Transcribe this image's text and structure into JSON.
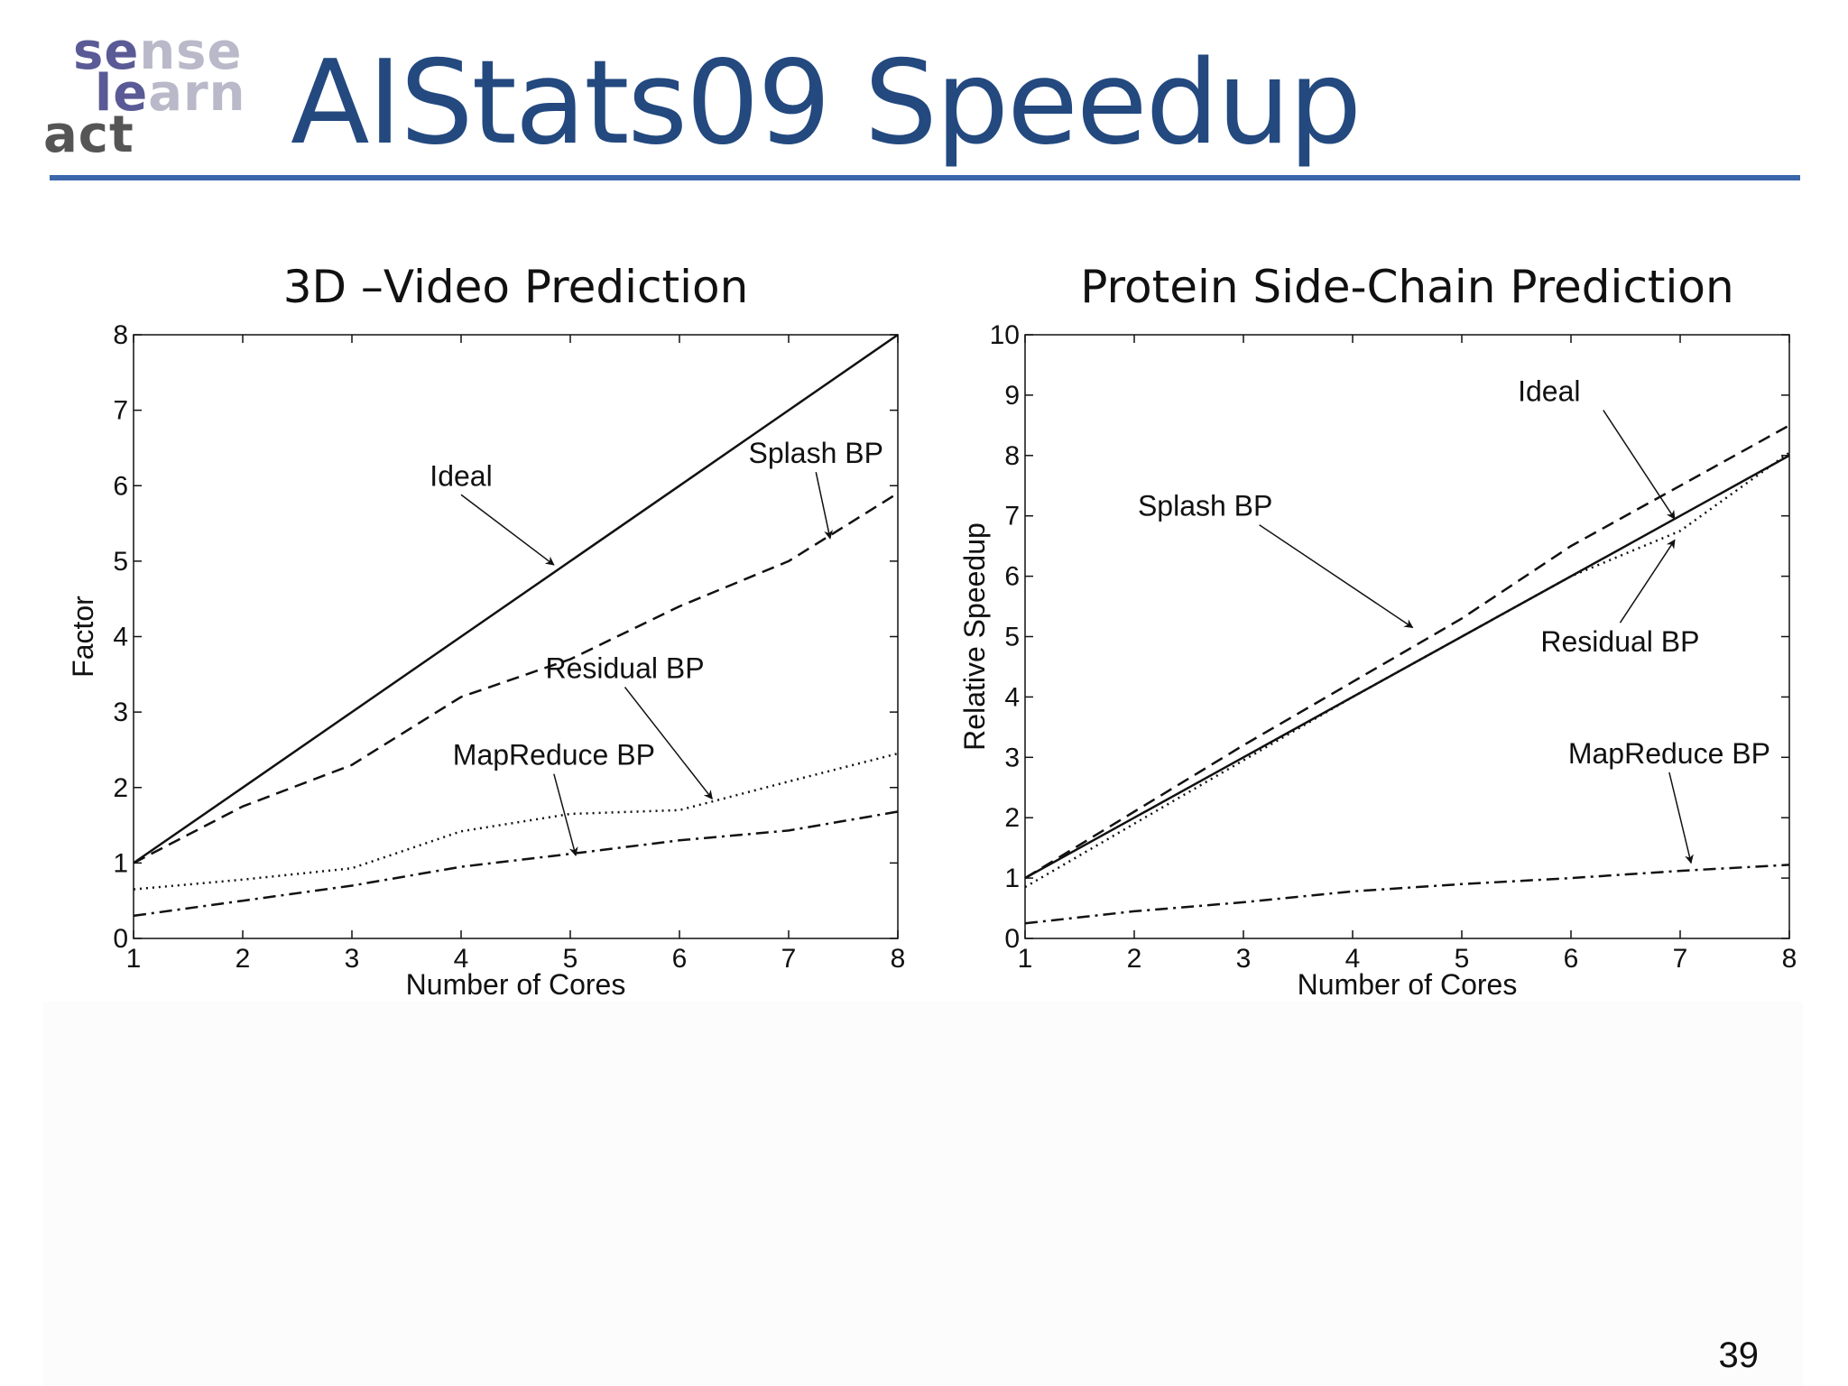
{
  "slide": {
    "title": "AIStats09 Speedup",
    "page_number": "39",
    "logo": {
      "words": [
        {
          "dark": "se",
          "light": "nse"
        },
        {
          "dark": "le",
          "light": "arn"
        },
        {
          "dark": "act",
          "light": ""
        }
      ]
    },
    "colors": {
      "title": "#23497f",
      "rule": "#3b66aa"
    }
  },
  "chart_data": [
    {
      "type": "line",
      "title": "3D –Video Prediction",
      "xlabel": "Number of Cores",
      "ylabel": "Factor",
      "xlim": [
        1,
        8
      ],
      "ylim": [
        0,
        8
      ],
      "xticks": [
        1,
        2,
        3,
        4,
        5,
        6,
        7,
        8
      ],
      "yticks": [
        0,
        1,
        2,
        3,
        4,
        5,
        6,
        7,
        8
      ],
      "grid": false,
      "series": [
        {
          "name": "Ideal",
          "style": "solid",
          "x": [
            1,
            2,
            3,
            4,
            5,
            6,
            7,
            8
          ],
          "y": [
            1,
            2,
            3,
            4,
            5,
            6,
            7,
            8
          ]
        },
        {
          "name": "Splash BP",
          "style": "dashed",
          "x": [
            1,
            2,
            3,
            4,
            5,
            6,
            7,
            8
          ],
          "y": [
            1,
            1.75,
            2.3,
            3.2,
            3.7,
            4.4,
            5.0,
            5.9
          ]
        },
        {
          "name": "Residual BP",
          "style": "dotted",
          "x": [
            1,
            2,
            3,
            4,
            5,
            6,
            7,
            8
          ],
          "y": [
            0.65,
            0.78,
            0.93,
            1.42,
            1.65,
            1.7,
            2.08,
            2.45
          ]
        },
        {
          "name": "MapReduce BP",
          "style": "dashdot",
          "x": [
            1,
            2,
            3,
            4,
            5,
            6,
            7,
            8
          ],
          "y": [
            0.3,
            0.5,
            0.7,
            0.95,
            1.12,
            1.3,
            1.43,
            1.68
          ]
        }
      ],
      "annotations": [
        {
          "text": "Ideal",
          "x": 4.0,
          "y": 6.0,
          "arrow_to": [
            4.85,
            4.95
          ]
        },
        {
          "text": "Splash BP",
          "x": 7.25,
          "y": 6.3,
          "arrow_to": [
            7.38,
            5.3
          ]
        },
        {
          "text": "Residual BP",
          "x": 5.5,
          "y": 3.45,
          "arrow_to": [
            6.3,
            1.85
          ]
        },
        {
          "text": "MapReduce BP",
          "x": 4.85,
          "y": 2.3,
          "arrow_to": [
            5.05,
            1.1
          ]
        }
      ]
    },
    {
      "type": "line",
      "title": "Protein Side-Chain Prediction",
      "xlabel": "Number of Cores",
      "ylabel": "Relative Speedup",
      "xlim": [
        1,
        8
      ],
      "ylim": [
        0,
        10
      ],
      "xticks": [
        1,
        2,
        3,
        4,
        5,
        6,
        7,
        8
      ],
      "yticks": [
        0,
        1,
        2,
        3,
        4,
        5,
        6,
        7,
        8,
        9,
        10
      ],
      "grid": false,
      "series": [
        {
          "name": "Ideal",
          "style": "solid",
          "x": [
            1,
            2,
            3,
            4,
            5,
            6,
            7,
            8
          ],
          "y": [
            1,
            2,
            3,
            4,
            5,
            6,
            7,
            8
          ]
        },
        {
          "name": "Splash BP",
          "style": "dashed",
          "x": [
            1,
            2,
            3,
            4,
            5,
            6,
            7,
            8
          ],
          "y": [
            1.0,
            2.1,
            3.2,
            4.25,
            5.3,
            6.5,
            7.5,
            8.5
          ]
        },
        {
          "name": "Residual BP",
          "style": "dotted",
          "x": [
            1,
            2,
            3,
            4,
            5,
            6,
            7,
            8
          ],
          "y": [
            0.85,
            1.9,
            2.95,
            4.0,
            5.0,
            6.0,
            6.75,
            8.05
          ]
        },
        {
          "name": "MapReduce BP",
          "style": "dashdot",
          "x": [
            1,
            2,
            3,
            4,
            5,
            6,
            7,
            8
          ],
          "y": [
            0.25,
            0.45,
            0.6,
            0.78,
            0.9,
            1.0,
            1.12,
            1.22
          ]
        }
      ],
      "annotations": [
        {
          "text": "Ideal",
          "x": 5.8,
          "y": 8.9,
          "arrow_to": [
            6.95,
            6.95
          ]
        },
        {
          "text": "Splash BP",
          "x": 2.65,
          "y": 7.0,
          "arrow_to": [
            4.55,
            5.15
          ]
        },
        {
          "text": "Residual BP",
          "x": 6.45,
          "y": 4.75,
          "arrow_to": [
            6.95,
            6.6
          ]
        },
        {
          "text": "MapReduce BP",
          "x": 6.9,
          "y": 2.9,
          "arrow_to": [
            7.1,
            1.25
          ]
        }
      ]
    }
  ]
}
